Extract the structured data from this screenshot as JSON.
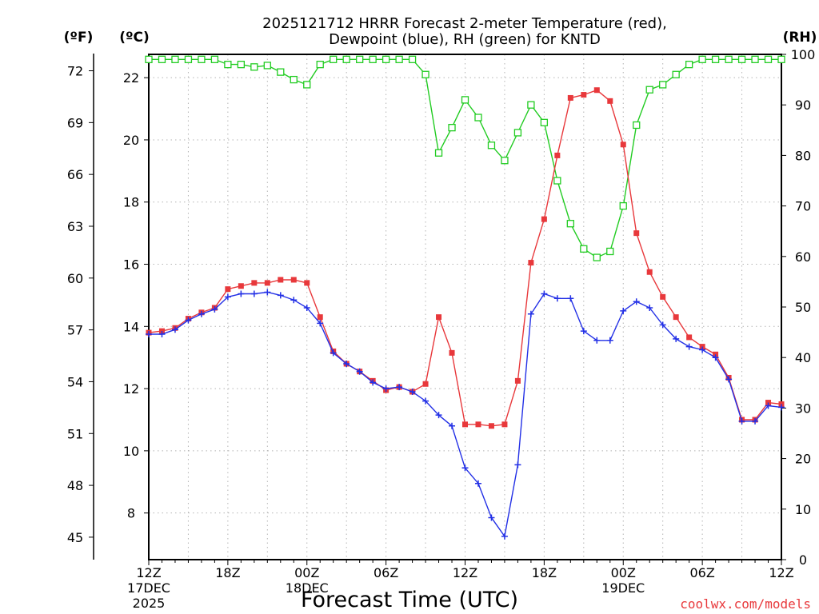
{
  "chart_data": {
    "type": "line",
    "title_line1": "2025121712 HRRR Forecast 2-meter Temperature (red),",
    "title_line2": "Dewpoint (blue), RH (green) for KNTD",
    "left_outer_unit": "(ºF)",
    "left_inner_unit": "(ºC)",
    "right_unit": "(RH)",
    "xlabel": "Forecast Time (UTC)",
    "credit": "coolwx.com/models",
    "x_range_hours": [
      0,
      48
    ],
    "celsius_range": [
      6.5,
      22.75
    ],
    "rh_range": [
      0,
      100
    ],
    "fahrenheit_ticks": [
      "72",
      "69",
      "66",
      "63",
      "60",
      "57",
      "54",
      "51",
      "48",
      "45"
    ],
    "celsius_ticks": [
      "22",
      "20",
      "18",
      "16",
      "14",
      "12",
      "10",
      "8"
    ],
    "rh_ticks": [
      "100",
      "90",
      "80",
      "70",
      "60",
      "50",
      "40",
      "30",
      "20",
      "10",
      "0"
    ],
    "x_ticks": [
      {
        "hour": 0,
        "label": "12Z",
        "sub1": "17DEC",
        "sub2": "2025"
      },
      {
        "hour": 6,
        "label": "18Z",
        "sub1": "",
        "sub2": ""
      },
      {
        "hour": 12,
        "label": "00Z",
        "sub1": "18DEC",
        "sub2": ""
      },
      {
        "hour": 18,
        "label": "06Z",
        "sub1": "",
        "sub2": ""
      },
      {
        "hour": 24,
        "label": "12Z",
        "sub1": "",
        "sub2": ""
      },
      {
        "hour": 30,
        "label": "18Z",
        "sub1": "",
        "sub2": ""
      },
      {
        "hour": 36,
        "label": "00Z",
        "sub1": "19DEC",
        "sub2": ""
      },
      {
        "hour": 42,
        "label": "06Z",
        "sub1": "",
        "sub2": ""
      },
      {
        "hour": 48,
        "label": "12Z",
        "sub1": "",
        "sub2": ""
      }
    ],
    "series": [
      {
        "name": "Temperature",
        "unit": "C",
        "color": "#e8383b",
        "marker": "filled-square",
        "values": [
          13.8,
          13.85,
          13.95,
          14.25,
          14.45,
          14.6,
          15.2,
          15.3,
          15.4,
          15.4,
          15.5,
          15.5,
          15.4,
          14.3,
          13.2,
          12.8,
          12.55,
          12.25,
          11.95,
          12.05,
          11.9,
          12.15,
          14.3,
          13.15,
          10.85,
          10.85,
          10.8,
          10.85,
          12.25,
          16.05,
          17.45,
          19.5,
          21.35,
          21.45,
          21.6,
          21.25,
          19.85,
          17.0,
          15.75,
          14.95,
          14.3,
          13.65,
          13.35,
          13.1,
          12.35,
          11.0,
          11.0,
          11.55,
          11.5
        ]
      },
      {
        "name": "Dewpoint",
        "unit": "C",
        "color": "#2330e6",
        "marker": "plus",
        "values": [
          13.75,
          13.75,
          13.9,
          14.2,
          14.4,
          14.55,
          14.95,
          15.05,
          15.05,
          15.1,
          15.0,
          14.85,
          14.6,
          14.1,
          13.15,
          12.8,
          12.55,
          12.2,
          12.0,
          12.05,
          11.9,
          11.6,
          11.15,
          10.8,
          9.45,
          8.95,
          7.85,
          7.25,
          9.55,
          14.4,
          15.05,
          14.9,
          14.9,
          13.85,
          13.55,
          13.55,
          14.5,
          14.8,
          14.6,
          14.05,
          13.6,
          13.35,
          13.25,
          13.0,
          12.3,
          10.95,
          10.95,
          11.45,
          11.4
        ]
      },
      {
        "name": "RH",
        "unit": "%",
        "color": "#22cc22",
        "marker": "open-square",
        "values": [
          99,
          99,
          99,
          99,
          99,
          99,
          98,
          98,
          97.5,
          97.8,
          96.5,
          95,
          94,
          98,
          99,
          99,
          99,
          99,
          99,
          99,
          99,
          96,
          80.5,
          85.5,
          91,
          87.5,
          82,
          79,
          84.5,
          90,
          86.5,
          75,
          66.5,
          61.5,
          59.8,
          61,
          70,
          86,
          93,
          94,
          96,
          98,
          99,
          99,
          99,
          99,
          99,
          99,
          99
        ]
      }
    ]
  }
}
